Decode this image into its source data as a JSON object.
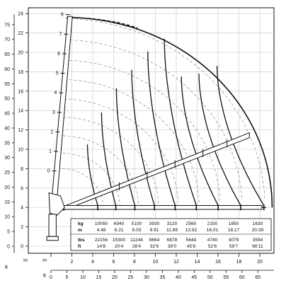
{
  "chart_data": {
    "type": "line",
    "description_labels": {
      "axis_unit_m": "m",
      "axis_unit_ft": "ft"
    },
    "y_ticks_m": [
      "0",
      "2",
      "4",
      "6",
      "8",
      "10",
      "12",
      "14",
      "16",
      "18",
      "20",
      "22",
      "24"
    ],
    "y_ticks_ft": [
      "0",
      "5",
      "10",
      "15",
      "20",
      "25",
      "30",
      "35",
      "40",
      "45",
      "50",
      "55",
      "60",
      "65",
      "70",
      "75"
    ],
    "x_ticks_m": [
      "2",
      "4",
      "6",
      "8",
      "10",
      "12",
      "14",
      "16",
      "18",
      "20"
    ],
    "x_ticks_ft": [
      "0",
      "5",
      "10",
      "15",
      "20",
      "25",
      "30",
      "35",
      "40",
      "45",
      "50",
      "55",
      "60",
      "65"
    ],
    "boom_segments": [
      "0",
      "1",
      "2",
      "3",
      "4",
      "5",
      "6",
      "7",
      "8"
    ],
    "load_table": {
      "row_labels": [
        "kg",
        "m",
        "lbs",
        "ft"
      ],
      "kg": [
        "10050",
        "6940",
        "5100",
        "3930",
        "3120",
        "2560",
        "2150",
        "1850",
        "1630"
      ],
      "m": [
        "4.48",
        "6.21",
        "8.03",
        "9.91",
        "11.89",
        "13.92",
        "16.01",
        "18.17",
        "20.39"
      ],
      "lbs": [
        "22156",
        "15300",
        "11244",
        "8664",
        "6878",
        "5644",
        "4740",
        "4079",
        "3594"
      ],
      "ft": [
        "14'8",
        "20'4",
        "26'4",
        "32'6",
        "39'0",
        "45'8",
        "52'6",
        "59'7",
        "66'11"
      ]
    },
    "series": [
      {
        "values": [
          4.48,
          6.21,
          8.03,
          9.91,
          11.89,
          13.92,
          16.01,
          18.17,
          20.39
        ]
      }
    ],
    "xlim": [
      0,
      21
    ],
    "ylim": [
      0,
      24
    ],
    "grid": true
  }
}
